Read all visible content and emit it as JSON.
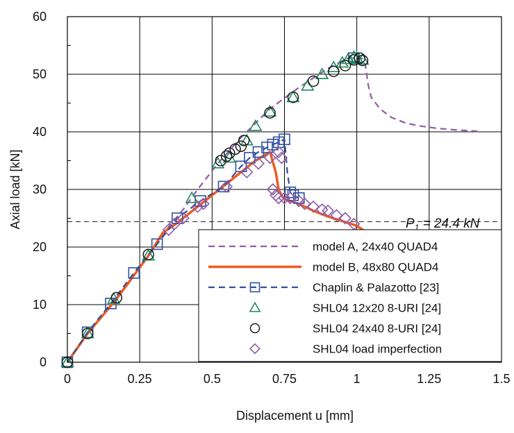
{
  "chart_data": {
    "type": "line",
    "xlabel": "Displacement u [mm]",
    "ylabel": "Axial load [kN]",
    "xlim": [
      0,
      1.5
    ],
    "ylim": [
      0,
      60
    ],
    "xticks": [
      0,
      0.25,
      0.5,
      0.75,
      1,
      1.25,
      1.5
    ],
    "xtick_labels": [
      "0",
      "0.25",
      "0.5",
      "0.75",
      "1",
      "1.25",
      "1.5"
    ],
    "yticks": [
      0,
      10,
      20,
      30,
      40,
      50,
      60
    ],
    "ytick_labels": [
      "0",
      "10",
      "20",
      "30",
      "40",
      "50",
      "60"
    ],
    "grid": true,
    "legend_position": "bottom-right",
    "reference_line": {
      "y": 24.4,
      "label_main": "P",
      "label_sub": "1",
      "label_rest": " = 24.4 kN"
    },
    "series": [
      {
        "name": "model A, 24x40 QUAD4",
        "style": "dashed-line",
        "color": "#8e5ba6",
        "x": [
          0,
          0.07,
          0.17,
          0.28,
          0.35,
          0.4,
          0.45,
          0.52,
          0.6,
          0.7,
          0.8,
          0.9,
          0.97,
          1.0,
          1.02,
          1.03,
          1.04,
          1.05,
          1.08,
          1.12,
          1.17,
          1.22,
          1.28,
          1.35,
          1.42
        ],
        "y": [
          0,
          5,
          11.2,
          18.7,
          23.5,
          26.5,
          30,
          34.5,
          39,
          44,
          47.7,
          51,
          52.8,
          53,
          52.7,
          51.5,
          48,
          46,
          44,
          42.5,
          41.5,
          41,
          40.6,
          40.3,
          40.1
        ]
      },
      {
        "name": "model B, 48x80 QUAD4",
        "style": "solid-line",
        "color": "#f05a1e",
        "x": [
          0,
          0.07,
          0.17,
          0.28,
          0.33,
          0.38,
          0.45,
          0.55,
          0.65,
          0.7,
          0.72,
          0.73,
          0.74,
          0.75,
          0.8,
          0.85,
          0.9,
          0.95,
          1.0,
          1.05
        ],
        "y": [
          0,
          5,
          11,
          18.5,
          22.5,
          24.2,
          27,
          31,
          35,
          36.5,
          33,
          30,
          29,
          28.3,
          27.5,
          26.3,
          25.3,
          24.5,
          23.7,
          22
        ]
      },
      {
        "name": "Chaplin & Palazotto [23]",
        "style": "dashed-line-square",
        "color": "#2f4f9e",
        "x": [
          0,
          0.07,
          0.15,
          0.23,
          0.31,
          0.38,
          0.46,
          0.54,
          0.6,
          0.63,
          0.66,
          0.69,
          0.71,
          0.73,
          0.75,
          0.76,
          0.77,
          0.78,
          0.8
        ],
        "y": [
          0,
          5.2,
          10.2,
          15.5,
          20.5,
          25,
          28,
          30.5,
          34,
          35.5,
          36.5,
          37.3,
          37.8,
          38.2,
          38.7,
          33,
          29.5,
          29,
          28.5
        ],
        "marker_x": [
          0,
          0.07,
          0.15,
          0.23,
          0.31,
          0.38,
          0.46,
          0.54,
          0.6,
          0.63,
          0.66,
          0.69,
          0.71,
          0.73,
          0.75,
          0.77,
          0.78,
          0.8,
          0.99
        ],
        "marker_y": [
          0,
          5.2,
          10.2,
          15.5,
          20.5,
          25,
          28,
          30.5,
          34,
          35.5,
          36.5,
          37.3,
          37.8,
          38.2,
          38.7,
          29.5,
          29,
          28.5,
          52.8
        ]
      },
      {
        "name": "SHL04 12x20 8-URI [24]",
        "style": "triangle-marker",
        "color": "#1f8a5b",
        "x": [
          0,
          0.07,
          0.16,
          0.28,
          0.43,
          0.52,
          0.56,
          0.62,
          0.65,
          0.7,
          0.78,
          0.83,
          0.88,
          0.92,
          0.95,
          0.97,
          0.99,
          1.0,
          1.02
        ],
        "y": [
          0,
          5,
          11,
          18.5,
          28.5,
          34.5,
          35.5,
          38.5,
          41,
          43.5,
          46,
          48,
          50,
          51.2,
          52,
          52.6,
          53,
          52.8,
          52.5
        ]
      },
      {
        "name": "SHL04 24x40 8-URI [24]",
        "style": "circle-marker",
        "color": "#1a1a1a",
        "x": [
          0,
          0.07,
          0.17,
          0.28,
          0.53,
          0.55,
          0.56,
          0.58,
          0.6,
          0.61,
          0.7,
          0.78,
          0.85,
          0.92,
          0.96,
          0.99,
          1.01,
          1.02
        ],
        "y": [
          0,
          5,
          11.2,
          18.7,
          35,
          35.8,
          36.3,
          37,
          37.5,
          38.5,
          43.3,
          46,
          48.8,
          50.5,
          51.5,
          52.5,
          52.8,
          52.4
        ]
      },
      {
        "name": "SHL04 load imperfection",
        "style": "diamond-marker",
        "color": "#8e5ba6",
        "x": [
          0.35,
          0.37,
          0.4,
          0.45,
          0.47,
          0.55,
          0.62,
          0.66,
          0.7,
          0.73,
          0.74,
          0.71,
          0.72,
          0.73,
          0.75,
          0.77,
          0.8,
          0.82,
          0.85,
          0.88,
          0.9,
          0.93,
          0.96,
          0.99
        ],
        "y": [
          23,
          24,
          25,
          27,
          27.5,
          30.5,
          33,
          34.5,
          35.5,
          36.5,
          35.5,
          30,
          29,
          28.5,
          28.5,
          28.5,
          28,
          27.5,
          27,
          26.5,
          26.3,
          25.5,
          25,
          24
        ]
      }
    ]
  }
}
